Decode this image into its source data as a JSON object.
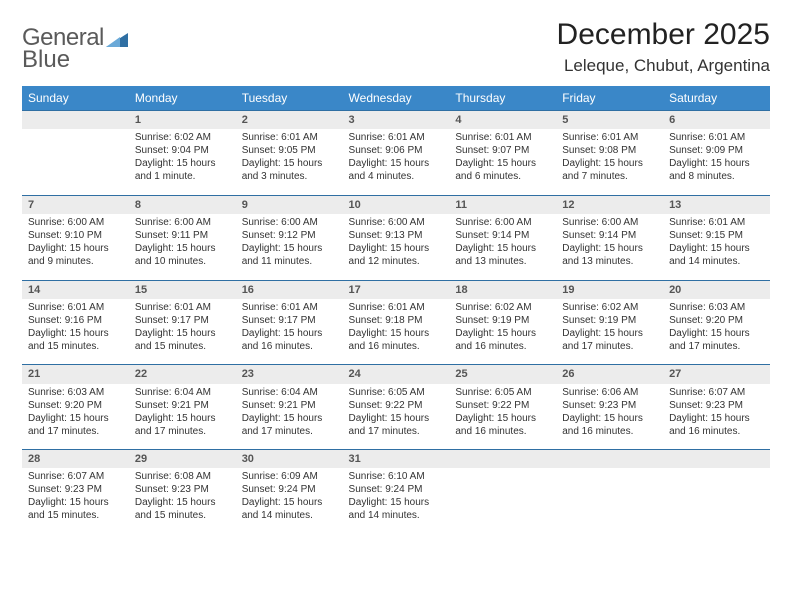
{
  "logo": {
    "part1": "General",
    "part2": "Blue",
    "color_text": "#5a5a5a",
    "color_icon": "#2f6fa3"
  },
  "header": {
    "title": "December 2025",
    "location": "Leleque, Chubut, Argentina"
  },
  "styles": {
    "header_bg": "#3a87c8",
    "header_fg": "#ffffff",
    "daynum_bg": "#ececec",
    "daynum_border": "#2f6fa3",
    "body_font_size": 10,
    "title_font_size": 30,
    "location_font_size": 17
  },
  "weekdays": [
    "Sunday",
    "Monday",
    "Tuesday",
    "Wednesday",
    "Thursday",
    "Friday",
    "Saturday"
  ],
  "weeks": [
    [
      {
        "n": "",
        "l": []
      },
      {
        "n": "1",
        "l": [
          "Sunrise: 6:02 AM",
          "Sunset: 9:04 PM",
          "Daylight: 15 hours",
          "and 1 minute."
        ]
      },
      {
        "n": "2",
        "l": [
          "Sunrise: 6:01 AM",
          "Sunset: 9:05 PM",
          "Daylight: 15 hours",
          "and 3 minutes."
        ]
      },
      {
        "n": "3",
        "l": [
          "Sunrise: 6:01 AM",
          "Sunset: 9:06 PM",
          "Daylight: 15 hours",
          "and 4 minutes."
        ]
      },
      {
        "n": "4",
        "l": [
          "Sunrise: 6:01 AM",
          "Sunset: 9:07 PM",
          "Daylight: 15 hours",
          "and 6 minutes."
        ]
      },
      {
        "n": "5",
        "l": [
          "Sunrise: 6:01 AM",
          "Sunset: 9:08 PM",
          "Daylight: 15 hours",
          "and 7 minutes."
        ]
      },
      {
        "n": "6",
        "l": [
          "Sunrise: 6:01 AM",
          "Sunset: 9:09 PM",
          "Daylight: 15 hours",
          "and 8 minutes."
        ]
      }
    ],
    [
      {
        "n": "7",
        "l": [
          "Sunrise: 6:00 AM",
          "Sunset: 9:10 PM",
          "Daylight: 15 hours",
          "and 9 minutes."
        ]
      },
      {
        "n": "8",
        "l": [
          "Sunrise: 6:00 AM",
          "Sunset: 9:11 PM",
          "Daylight: 15 hours",
          "and 10 minutes."
        ]
      },
      {
        "n": "9",
        "l": [
          "Sunrise: 6:00 AM",
          "Sunset: 9:12 PM",
          "Daylight: 15 hours",
          "and 11 minutes."
        ]
      },
      {
        "n": "10",
        "l": [
          "Sunrise: 6:00 AM",
          "Sunset: 9:13 PM",
          "Daylight: 15 hours",
          "and 12 minutes."
        ]
      },
      {
        "n": "11",
        "l": [
          "Sunrise: 6:00 AM",
          "Sunset: 9:14 PM",
          "Daylight: 15 hours",
          "and 13 minutes."
        ]
      },
      {
        "n": "12",
        "l": [
          "Sunrise: 6:00 AM",
          "Sunset: 9:14 PM",
          "Daylight: 15 hours",
          "and 13 minutes."
        ]
      },
      {
        "n": "13",
        "l": [
          "Sunrise: 6:01 AM",
          "Sunset: 9:15 PM",
          "Daylight: 15 hours",
          "and 14 minutes."
        ]
      }
    ],
    [
      {
        "n": "14",
        "l": [
          "Sunrise: 6:01 AM",
          "Sunset: 9:16 PM",
          "Daylight: 15 hours",
          "and 15 minutes."
        ]
      },
      {
        "n": "15",
        "l": [
          "Sunrise: 6:01 AM",
          "Sunset: 9:17 PM",
          "Daylight: 15 hours",
          "and 15 minutes."
        ]
      },
      {
        "n": "16",
        "l": [
          "Sunrise: 6:01 AM",
          "Sunset: 9:17 PM",
          "Daylight: 15 hours",
          "and 16 minutes."
        ]
      },
      {
        "n": "17",
        "l": [
          "Sunrise: 6:01 AM",
          "Sunset: 9:18 PM",
          "Daylight: 15 hours",
          "and 16 minutes."
        ]
      },
      {
        "n": "18",
        "l": [
          "Sunrise: 6:02 AM",
          "Sunset: 9:19 PM",
          "Daylight: 15 hours",
          "and 16 minutes."
        ]
      },
      {
        "n": "19",
        "l": [
          "Sunrise: 6:02 AM",
          "Sunset: 9:19 PM",
          "Daylight: 15 hours",
          "and 17 minutes."
        ]
      },
      {
        "n": "20",
        "l": [
          "Sunrise: 6:03 AM",
          "Sunset: 9:20 PM",
          "Daylight: 15 hours",
          "and 17 minutes."
        ]
      }
    ],
    [
      {
        "n": "21",
        "l": [
          "Sunrise: 6:03 AM",
          "Sunset: 9:20 PM",
          "Daylight: 15 hours",
          "and 17 minutes."
        ]
      },
      {
        "n": "22",
        "l": [
          "Sunrise: 6:04 AM",
          "Sunset: 9:21 PM",
          "Daylight: 15 hours",
          "and 17 minutes."
        ]
      },
      {
        "n": "23",
        "l": [
          "Sunrise: 6:04 AM",
          "Sunset: 9:21 PM",
          "Daylight: 15 hours",
          "and 17 minutes."
        ]
      },
      {
        "n": "24",
        "l": [
          "Sunrise: 6:05 AM",
          "Sunset: 9:22 PM",
          "Daylight: 15 hours",
          "and 17 minutes."
        ]
      },
      {
        "n": "25",
        "l": [
          "Sunrise: 6:05 AM",
          "Sunset: 9:22 PM",
          "Daylight: 15 hours",
          "and 16 minutes."
        ]
      },
      {
        "n": "26",
        "l": [
          "Sunrise: 6:06 AM",
          "Sunset: 9:23 PM",
          "Daylight: 15 hours",
          "and 16 minutes."
        ]
      },
      {
        "n": "27",
        "l": [
          "Sunrise: 6:07 AM",
          "Sunset: 9:23 PM",
          "Daylight: 15 hours",
          "and 16 minutes."
        ]
      }
    ],
    [
      {
        "n": "28",
        "l": [
          "Sunrise: 6:07 AM",
          "Sunset: 9:23 PM",
          "Daylight: 15 hours",
          "and 15 minutes."
        ]
      },
      {
        "n": "29",
        "l": [
          "Sunrise: 6:08 AM",
          "Sunset: 9:23 PM",
          "Daylight: 15 hours",
          "and 15 minutes."
        ]
      },
      {
        "n": "30",
        "l": [
          "Sunrise: 6:09 AM",
          "Sunset: 9:24 PM",
          "Daylight: 15 hours",
          "and 14 minutes."
        ]
      },
      {
        "n": "31",
        "l": [
          "Sunrise: 6:10 AM",
          "Sunset: 9:24 PM",
          "Daylight: 15 hours",
          "and 14 minutes."
        ]
      },
      {
        "n": "",
        "l": []
      },
      {
        "n": "",
        "l": []
      },
      {
        "n": "",
        "l": []
      }
    ]
  ]
}
